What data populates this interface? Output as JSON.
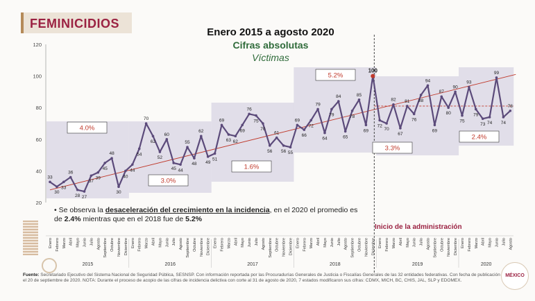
{
  "page": {
    "section_title": "FEMINICIDIOS",
    "heading": "Enero 2015 a agosto 2020",
    "subheading": "Cifras absolutas",
    "subheading2": "Víctimas",
    "admin_label": "Inicio de la administración",
    "note": {
      "t1": "Se observa la ",
      "t2": "desaceleración del crecimiento en la incidencia",
      "t3": ", en el 2020 el promedio es de ",
      "t4": "2.4%",
      "t5": " mientras que en el 2018 fue de ",
      "t6": "5.2%"
    },
    "footer": {
      "label": "Fuente:",
      "text": "Secretariado Ejecutivo del Sistema Nacional de Seguridad Pública, SESNSP. Con información reportada por las Procuradurías Generales de Justicia o Fiscalías Generales de las 32 entidades federativas. Con fecha de publicación el 20 de septiembre de 2020. NOTA: Durante el proceso de acopio de las cifras de incidencia delictiva con corte al 31 de agosto de 2020, 7 estados modificaron sus cifras: CDMX, MICH, BC, CHIS, JAL, SLP y EDOMEX."
    },
    "logo_text": "MÉXICO"
  },
  "colors": {
    "line": "#5b4a7a",
    "trend": "#c0392b",
    "box": "#dcd8e6",
    "label_box_border": "#c0392b",
    "highlight": "#c0392b",
    "title": "#9b2242",
    "green": "#2f6b3a"
  },
  "chart_data": {
    "type": "line",
    "ylim": [
      20,
      120
    ],
    "yticks": [
      20,
      40,
      60,
      80,
      100,
      120
    ],
    "months": [
      "Enero",
      "Febrero",
      "Marzo",
      "Abril",
      "Mayo",
      "Junio",
      "Julio",
      "Agosto",
      "Septiembre",
      "Octubre",
      "Noviembre",
      "Diciembre"
    ],
    "years": [
      "2015",
      "2016",
      "2017",
      "2018",
      "2019",
      "2020"
    ],
    "series": [
      {
        "values": [
          33,
          30,
          33,
          36,
          28,
          27,
          37,
          39,
          45,
          48,
          30,
          40,
          44,
          54,
          70,
          62,
          52,
          60,
          45,
          44,
          55,
          48,
          62,
          49,
          51,
          69,
          63,
          62,
          69,
          76,
          75,
          70,
          56,
          61,
          56,
          55,
          69,
          66,
          72,
          79,
          64,
          79,
          84,
          65,
          78,
          85,
          69,
          100,
          72,
          70,
          82,
          67,
          81,
          76,
          88,
          94,
          69,
          87,
          80,
          90,
          75,
          93,
          79,
          73,
          74,
          99,
          74,
          78
        ],
        "labels": [
          "33",
          "30",
          "33",
          "36",
          "28",
          "27",
          "37",
          "39",
          "45",
          "48",
          "30",
          "40",
          "44",
          "54",
          "70",
          "62",
          "52",
          "60",
          "45",
          "44",
          "55",
          "48",
          "62",
          "49",
          "51",
          "69",
          "63",
          "62",
          "69",
          "76",
          "75",
          "70",
          "56",
          "61",
          "56",
          "55",
          "69",
          "66",
          "72",
          "79",
          "64",
          "79",
          "84",
          "65",
          "78",
          "85",
          "69",
          "100",
          "72",
          "70",
          "82",
          "67",
          "81",
          "76",
          "88",
          "94",
          "69",
          "87",
          "80",
          "90",
          "75",
          "93",
          "79",
          "73",
          "74",
          "99",
          "74",
          "78"
        ]
      }
    ],
    "annotations": [
      {
        "text": "4.0%"
      },
      {
        "text": "3.0%"
      },
      {
        "text": "1.6%"
      },
      {
        "text": "5.2%"
      },
      {
        "text": "3.3%"
      },
      {
        "text": "2.4%"
      }
    ],
    "trendline_start": 28,
    "trendline_end": 101,
    "admin_start_index": 47
  }
}
